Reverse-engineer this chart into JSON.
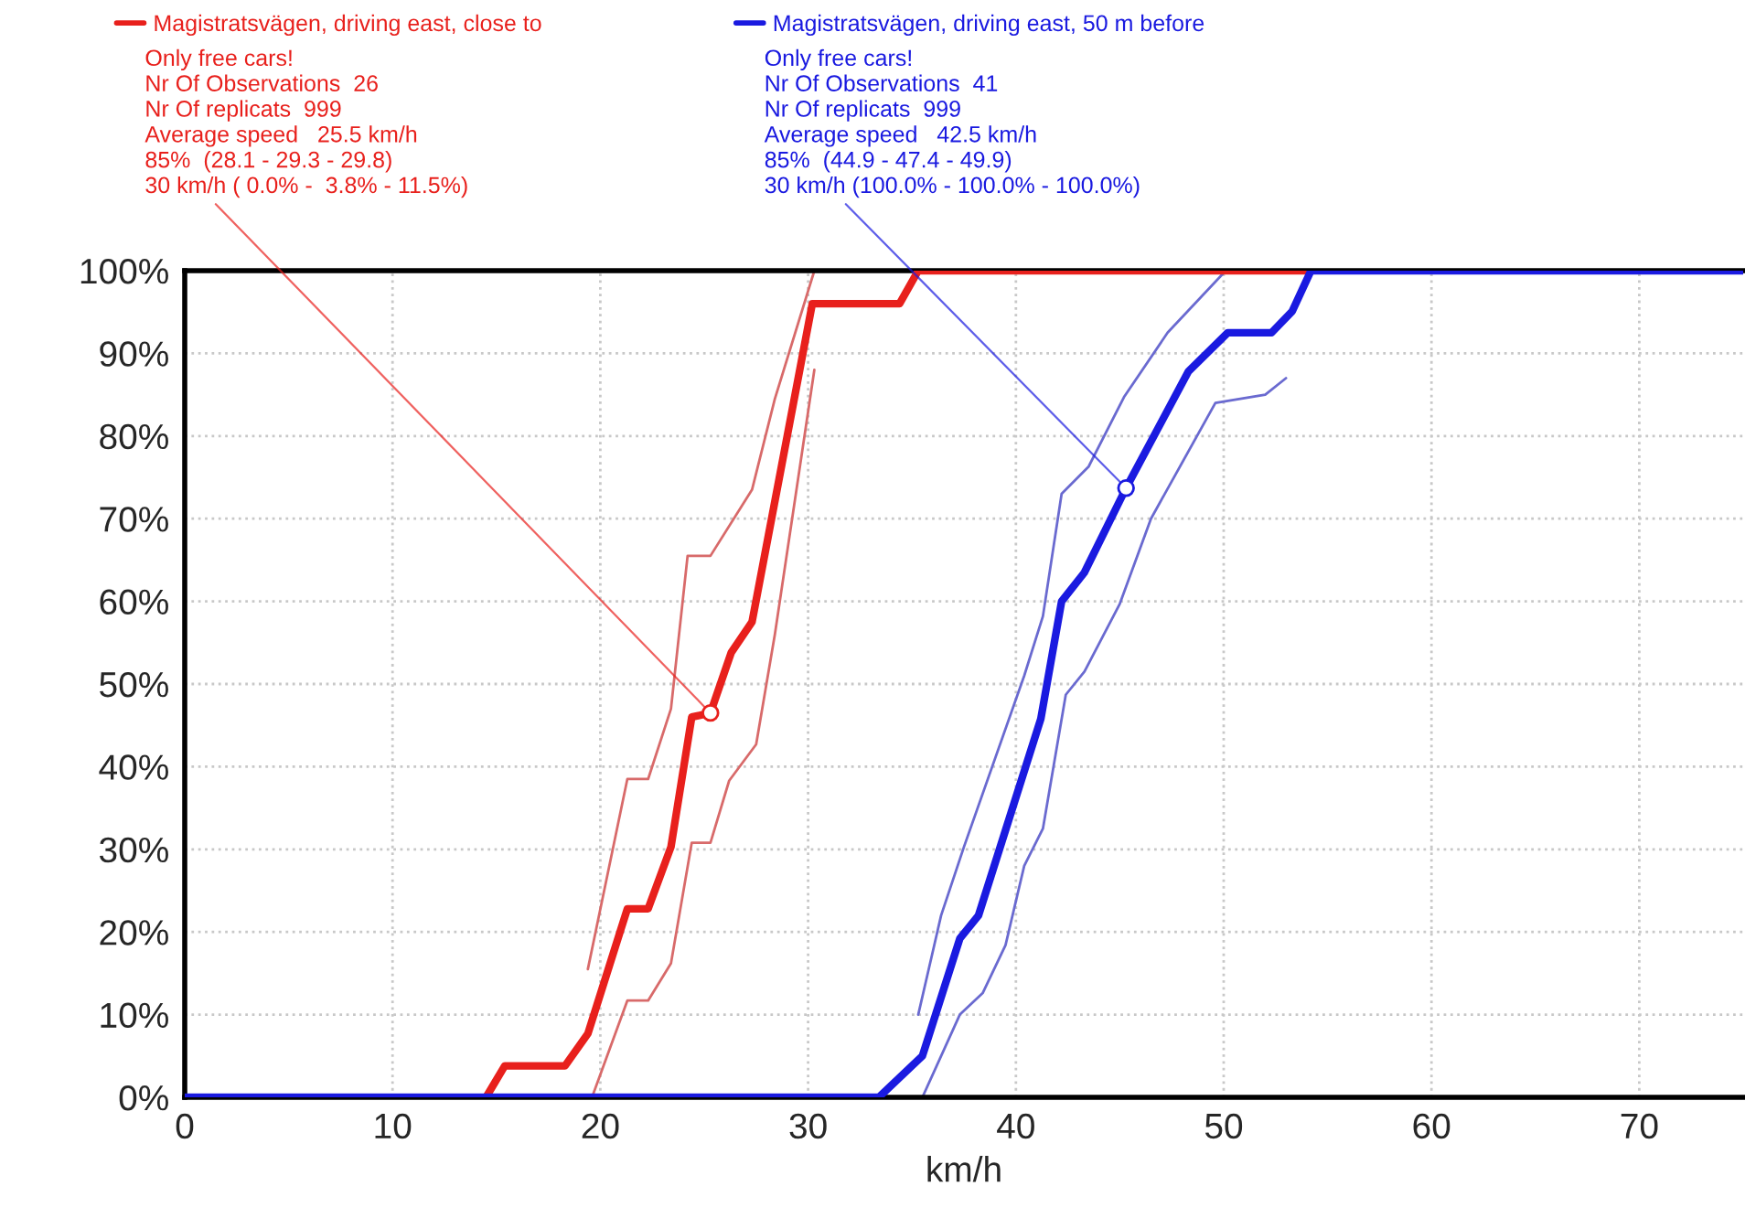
{
  "chart_data": {
    "type": "line",
    "xlabel": "km/h",
    "xlim": [
      0,
      75
    ],
    "ylim": [
      0,
      100
    ],
    "xticks": [
      0,
      10,
      20,
      30,
      40,
      50,
      60,
      70
    ],
    "yticks": [
      {
        "value": 0,
        "label": "0%"
      },
      {
        "value": 10,
        "label": "10%"
      },
      {
        "value": 20,
        "label": "20%"
      },
      {
        "value": 30,
        "label": "30%"
      },
      {
        "value": 40,
        "label": "40%"
      },
      {
        "value": 50,
        "label": "50%"
      },
      {
        "value": 60,
        "label": "60%"
      },
      {
        "value": 70,
        "label": "70%"
      },
      {
        "value": 80,
        "label": "80%"
      },
      {
        "value": 90,
        "label": "90%"
      },
      {
        "value": 100,
        "label": "100%"
      }
    ],
    "grid": true,
    "legend": "top left",
    "marker": "none",
    "line_style": "solid",
    "series": [
      {
        "name": "Magistratsvägen, driving east, close to",
        "color": "#e8201c",
        "x": [
          14.5,
          15.4,
          18.3,
          19.4,
          21.3,
          22.3,
          23.4,
          24.4,
          25.3,
          26.3,
          27.3,
          30.2,
          34.4,
          35.3,
          54.2
        ],
        "values": [
          0,
          3.8,
          3.8,
          7.7,
          22.8,
          22.8,
          30.3,
          46,
          46.5,
          53.8,
          57.5,
          96,
          96,
          100,
          100
        ]
      },
      {
        "name": "Magistratsvägen, driving east, 50 m before",
        "color": "#1a1ae0",
        "x": [
          0,
          33.4,
          35.5,
          37.3,
          38.2,
          41.2,
          42.2,
          43.3,
          45.3,
          48.3,
          50.2,
          52.3,
          53.3,
          54.2,
          75
        ],
        "values": [
          0,
          0,
          5,
          19.2,
          22,
          45.8,
          60,
          63.5,
          73.7,
          87.8,
          92.5,
          92.5,
          95.1,
          100,
          100
        ]
      },
      {
        "color": "#d86a6a",
        "x": [
          19.4,
          21.3,
          22.3,
          23.4,
          24.2,
          25.3,
          27.3,
          28.4,
          30.3
        ],
        "values": [
          15.5,
          38.5,
          38.5,
          47,
          65.5,
          65.5,
          73.5,
          84.5,
          100
        ]
      },
      {
        "color": "#d86a6a",
        "x": [
          19.6,
          21.3,
          22.3,
          23.4,
          24.4,
          25.3,
          26.2,
          27.5,
          28.4,
          30.3
        ],
        "values": [
          0,
          11.7,
          11.7,
          16.2,
          30.8,
          30.8,
          38.3,
          42.7,
          56,
          88
        ]
      },
      {
        "color": "#6a6ad0",
        "x": [
          35.3,
          36.4,
          37.5,
          40.4,
          41.3,
          42.2,
          43.5,
          45.2,
          47.3,
          50.1
        ],
        "values": [
          10,
          22,
          30.3,
          51,
          58.2,
          73,
          76.3,
          84.7,
          92.5,
          100
        ]
      },
      {
        "color": "#6a6ad0",
        "x": [
          35.5,
          37.3,
          38.4,
          39.5,
          40.4,
          41.3,
          42.4,
          43.3,
          45,
          46.5,
          49.6,
          52,
          53
        ],
        "values": [
          0,
          10,
          12.6,
          18.4,
          28,
          32.5,
          48.7,
          51.5,
          59.7,
          70,
          84,
          85,
          87
        ]
      }
    ],
    "annotations": [
      {
        "text": "Only free cars!\nNr Of Observations  26\nNr Of replicats  999\nAverage speed   25.5 km/h\n85%  (28.1 - 29.3 - 29.8)\n30 km/h ( 0.0% -  3.8% - 11.5%)",
        "x": 25.3,
        "y": 46.5
      },
      {
        "text": "Only free cars!\nNr Of Observations  41\nNr Of replicats  999\nAverage speed   42.5 km/h\n85%  (44.9 - 47.4 - 49.9)\n30 km/h (100.0% - 100.0% - 100.0%)",
        "x": 45.3,
        "y": 73.7
      }
    ]
  }
}
